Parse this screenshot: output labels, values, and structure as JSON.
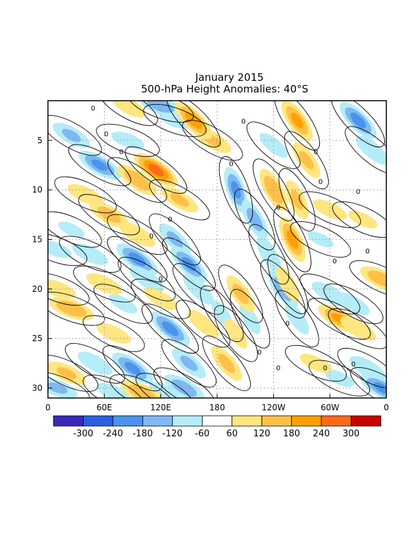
{
  "chart_data": {
    "type": "heatmap",
    "title": "January 2015",
    "subtitle": "500-hPa Height Anomalies: 40°S",
    "xlabel": "",
    "ylabel": "",
    "x_ticks": [
      "0",
      "60E",
      "120E",
      "180",
      "120W",
      "60W",
      "0"
    ],
    "x_tick_lon": [
      0,
      60,
      120,
      180,
      240,
      300,
      360
    ],
    "y_ticks": [
      5,
      10,
      15,
      20,
      25,
      30
    ],
    "xlim": [
      0,
      360
    ],
    "ylim": [
      31,
      1
    ],
    "grid": true,
    "contour_label": "0",
    "colorbar": {
      "labels": [
        "-300",
        "-240",
        "-180",
        "-120",
        "-60",
        "60",
        "120",
        "180",
        "240",
        "300"
      ],
      "colors": [
        "#3a2ab8",
        "#2860e0",
        "#4a94ec",
        "#7eb8f2",
        "#b4ecf8",
        "#ffffff",
        "#ffe680",
        "#ffc04a",
        "#ffa000",
        "#ff6a1a",
        "#c80000"
      ]
    },
    "blobs": [
      {
        "lon": 25,
        "day": 4.5,
        "val": -120,
        "ang": 30
      },
      {
        "lon": 55,
        "day": 7.5,
        "val": -180,
        "ang": 30
      },
      {
        "lon": 120,
        "day": 1.5,
        "val": -150,
        "ang": 20
      },
      {
        "lon": 135,
        "day": 3,
        "val": -70,
        "ang": 20
      },
      {
        "lon": 85,
        "day": 5,
        "val": -80,
        "ang": 20
      },
      {
        "lon": 25,
        "day": 14,
        "val": -60,
        "ang": 25
      },
      {
        "lon": 45,
        "day": 16.5,
        "val": -100,
        "ang": 25
      },
      {
        "lon": 95,
        "day": 17,
        "val": -190,
        "ang": 35
      },
      {
        "lon": 105,
        "day": 19,
        "val": -110,
        "ang": 35
      },
      {
        "lon": 135,
        "day": 15,
        "val": -120,
        "ang": 45
      },
      {
        "lon": 150,
        "day": 17.5,
        "val": -180,
        "ang": 45
      },
      {
        "lon": 160,
        "day": 20,
        "val": -110,
        "ang": 45
      },
      {
        "lon": 80,
        "day": 21.5,
        "val": -70,
        "ang": 30
      },
      {
        "lon": 130,
        "day": 24,
        "val": -190,
        "ang": 40
      },
      {
        "lon": 150,
        "day": 27.5,
        "val": -120,
        "ang": 40
      },
      {
        "lon": 90,
        "day": 28,
        "val": -180,
        "ang": 35
      },
      {
        "lon": 50,
        "day": 27.5,
        "val": -100,
        "ang": 30
      },
      {
        "lon": 70,
        "day": 30.5,
        "val": -90,
        "ang": 25
      },
      {
        "lon": 125,
        "day": 30.5,
        "val": -90,
        "ang": 30
      },
      {
        "lon": 145,
        "day": 30,
        "val": -150,
        "ang": 30
      },
      {
        "lon": 10,
        "day": 30,
        "val": -120,
        "ang": 20
      },
      {
        "lon": 8,
        "day": 16,
        "val": -80,
        "ang": 20
      },
      {
        "lon": 200,
        "day": 10,
        "val": -180,
        "ang": 70
      },
      {
        "lon": 220,
        "day": 13,
        "val": -140,
        "ang": 60
      },
      {
        "lon": 235,
        "day": 16.5,
        "val": -110,
        "ang": 60
      },
      {
        "lon": 250,
        "day": 20,
        "val": -150,
        "ang": 55
      },
      {
        "lon": 265,
        "day": 23,
        "val": -90,
        "ang": 55
      },
      {
        "lon": 215,
        "day": 23,
        "val": -80,
        "ang": 60
      },
      {
        "lon": 185,
        "day": 22.5,
        "val": -70,
        "ang": 55
      },
      {
        "lon": 240,
        "day": 5.5,
        "val": -80,
        "ang": 40
      },
      {
        "lon": 330,
        "day": 3,
        "val": -190,
        "ang": 45
      },
      {
        "lon": 345,
        "day": 6,
        "val": -110,
        "ang": 40
      },
      {
        "lon": 300,
        "day": 20.5,
        "val": -110,
        "ang": 30
      },
      {
        "lon": 325,
        "day": 21.5,
        "val": -90,
        "ang": 30
      },
      {
        "lon": 340,
        "day": 28,
        "val": -110,
        "ang": 30
      },
      {
        "lon": 355,
        "day": 30,
        "val": -180,
        "ang": 30
      },
      {
        "lon": 310,
        "day": 29,
        "val": -70,
        "ang": 25
      },
      {
        "lon": 290,
        "day": 15,
        "val": -60,
        "ang": 25
      },
      {
        "lon": 85,
        "day": 1.5,
        "val": 100,
        "ang": 30
      },
      {
        "lon": 95,
        "day": 9,
        "val": 160,
        "ang": 35
      },
      {
        "lon": 115,
        "day": 8,
        "val": 250,
        "ang": 35
      },
      {
        "lon": 140,
        "day": 11,
        "val": 120,
        "ang": 30
      },
      {
        "lon": 175,
        "day": 5,
        "val": 120,
        "ang": 30
      },
      {
        "lon": 155,
        "day": 3,
        "val": 200,
        "ang": 45
      },
      {
        "lon": 40,
        "day": 10.5,
        "val": 100,
        "ang": 25
      },
      {
        "lon": 65,
        "day": 12.5,
        "val": 140,
        "ang": 30
      },
      {
        "lon": 95,
        "day": 14.5,
        "val": 110,
        "ang": 30
      },
      {
        "lon": 10,
        "day": 20,
        "val": 100,
        "ang": 20
      },
      {
        "lon": 25,
        "day": 22,
        "val": 170,
        "ang": 20
      },
      {
        "lon": 60,
        "day": 19.5,
        "val": 100,
        "ang": 25
      },
      {
        "lon": 70,
        "day": 24.5,
        "val": 90,
        "ang": 25
      },
      {
        "lon": 120,
        "day": 21,
        "val": 90,
        "ang": 30
      },
      {
        "lon": 165,
        "day": 23.5,
        "val": 100,
        "ang": 40
      },
      {
        "lon": 20,
        "day": 28.5,
        "val": 120,
        "ang": 25
      },
      {
        "lon": 100,
        "day": 30.5,
        "val": 160,
        "ang": 25
      },
      {
        "lon": 190,
        "day": 27.5,
        "val": 130,
        "ang": 50
      },
      {
        "lon": 205,
        "day": 20.5,
        "val": 130,
        "ang": 55
      },
      {
        "lon": 200,
        "day": 24.5,
        "val": 80,
        "ang": 55
      },
      {
        "lon": 240,
        "day": 10,
        "val": 170,
        "ang": 60
      },
      {
        "lon": 260,
        "day": 15,
        "val": 190,
        "ang": 65
      },
      {
        "lon": 265,
        "day": 11,
        "val": 120,
        "ang": 65
      },
      {
        "lon": 255,
        "day": 19.5,
        "val": 100,
        "ang": 60
      },
      {
        "lon": 265,
        "day": 3,
        "val": 180,
        "ang": 55
      },
      {
        "lon": 275,
        "day": 7,
        "val": 120,
        "ang": 55
      },
      {
        "lon": 310,
        "day": 23,
        "val": 180,
        "ang": 30
      },
      {
        "lon": 330,
        "day": 24,
        "val": 110,
        "ang": 30
      },
      {
        "lon": 355,
        "day": 19,
        "val": 160,
        "ang": 25
      },
      {
        "lon": 300,
        "day": 12,
        "val": 90,
        "ang": 25
      },
      {
        "lon": 285,
        "day": 27.5,
        "val": 80,
        "ang": 25
      },
      {
        "lon": 335,
        "day": 13,
        "val": 70,
        "ang": 25
      }
    ]
  }
}
